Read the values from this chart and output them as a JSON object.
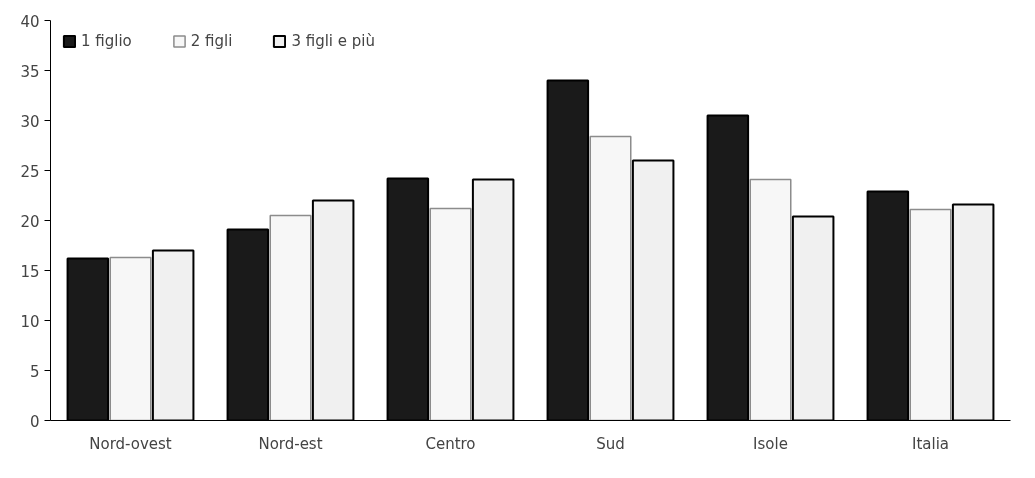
{
  "chart_data": {
    "type": "bar",
    "categories": [
      "Nord-ovest",
      "Nord-est",
      "Centro",
      "Sud",
      "Isole",
      "Italia"
    ],
    "series": [
      {
        "name": "1 figlio",
        "color": "#1a1a1a",
        "values": [
          16.2,
          19.1,
          24.2,
          34.0,
          30.5,
          22.9
        ]
      },
      {
        "name": "2 figli",
        "color": "#f7f7f7",
        "values": [
          16.3,
          20.5,
          21.2,
          28.4,
          24.1,
          21.1
        ]
      },
      {
        "name": "3 figli e più",
        "color": "#f0f0f0",
        "values": [
          17.0,
          22.0,
          24.1,
          26.0,
          20.4,
          21.6
        ]
      }
    ],
    "ylim": [
      0,
      40
    ],
    "yticks": [
      0,
      5,
      10,
      15,
      20,
      25,
      30,
      35,
      40
    ],
    "grid": false,
    "legend": "top left"
  }
}
